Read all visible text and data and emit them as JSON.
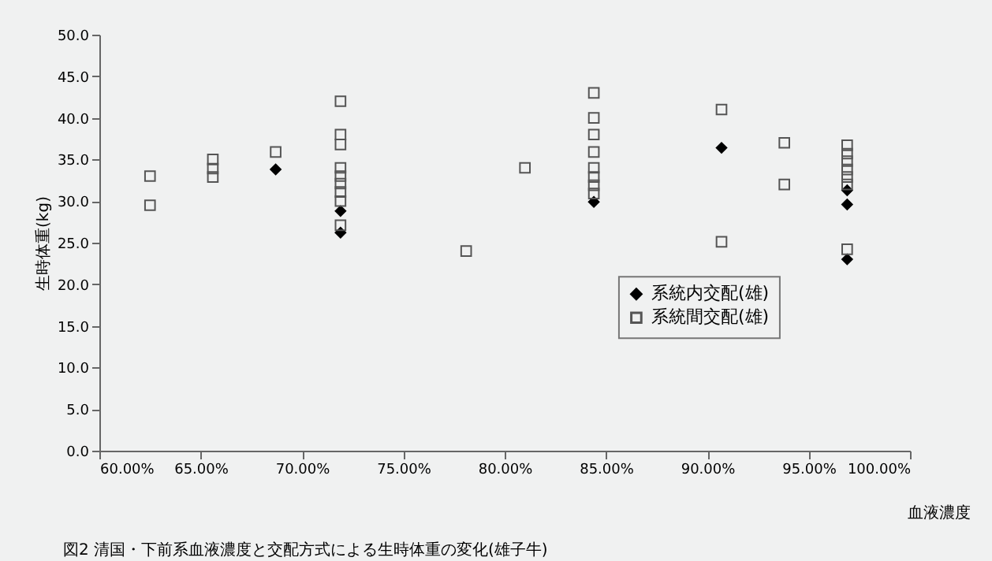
{
  "chart_data": {
    "type": "scatter",
    "title": "図2  清国・下前系血液濃度と交配方式による生時体重の変化(雄子牛)",
    "xlabel": "血液濃度",
    "ylabel": "生時体重(kg)",
    "xlim": [
      60,
      100
    ],
    "xticks": [
      {
        "value": 60,
        "label": "60.00%"
      },
      {
        "value": 65,
        "label": "65.00%"
      },
      {
        "value": 70,
        "label": "70.00%"
      },
      {
        "value": 75,
        "label": "75.00%"
      },
      {
        "value": 80,
        "label": "80.00%"
      },
      {
        "value": 85,
        "label": "85.00%"
      },
      {
        "value": 90,
        "label": "90.00%"
      },
      {
        "value": 95,
        "label": "95.00%"
      },
      {
        "value": 100,
        "label": "100.00%"
      }
    ],
    "ylim": [
      0,
      50
    ],
    "yticks": [
      {
        "value": 0,
        "label": "0.0"
      },
      {
        "value": 5,
        "label": "5.0"
      },
      {
        "value": 10,
        "label": "10.0"
      },
      {
        "value": 15,
        "label": "15.0"
      },
      {
        "value": 20,
        "label": "20.0"
      },
      {
        "value": 25,
        "label": "25.0"
      },
      {
        "value": 30,
        "label": "30.0"
      },
      {
        "value": 35,
        "label": "35.0"
      },
      {
        "value": 40,
        "label": "40.0"
      },
      {
        "value": 45,
        "label": "45.0"
      },
      {
        "value": 50,
        "label": "50.0"
      }
    ],
    "legend": "bottom right",
    "series": [
      {
        "name": "系統内交配(雄)",
        "color": "#000000",
        "marker": "diamond",
        "x": [
          68.7,
          71.9,
          71.9,
          84.4,
          90.7,
          96.9,
          96.9,
          96.9
        ],
        "values": [
          33.8,
          28.8,
          26.2,
          29.9,
          36.4,
          31.3,
          29.6,
          23.0
        ]
      },
      {
        "name": "系統間交配(雄)",
        "color": "#555555",
        "marker": "square",
        "x": [
          62.5,
          62.5,
          65.6,
          65.6,
          65.6,
          68.7,
          71.9,
          71.9,
          71.9,
          71.9,
          71.9,
          71.9,
          71.9,
          71.9,
          71.9,
          78.1,
          81.0,
          84.4,
          84.4,
          84.4,
          84.4,
          84.4,
          84.4,
          84.4,
          84.4,
          90.7,
          90.7,
          93.8,
          93.8,
          96.9,
          96.9,
          96.9,
          96.9,
          96.9,
          96.9,
          96.9
        ],
        "values": [
          33.0,
          29.5,
          35.0,
          33.9,
          32.9,
          35.9,
          42.0,
          38.0,
          36.8,
          34.0,
          33.0,
          32.1,
          31.1,
          30.0,
          27.1,
          24.0,
          34.0,
          43.0,
          40.0,
          38.0,
          35.9,
          34.0,
          32.9,
          31.9,
          30.9,
          41.0,
          25.1,
          37.0,
          32.0,
          36.7,
          35.7,
          34.8,
          33.8,
          32.9,
          32.0,
          24.2
        ]
      }
    ]
  }
}
